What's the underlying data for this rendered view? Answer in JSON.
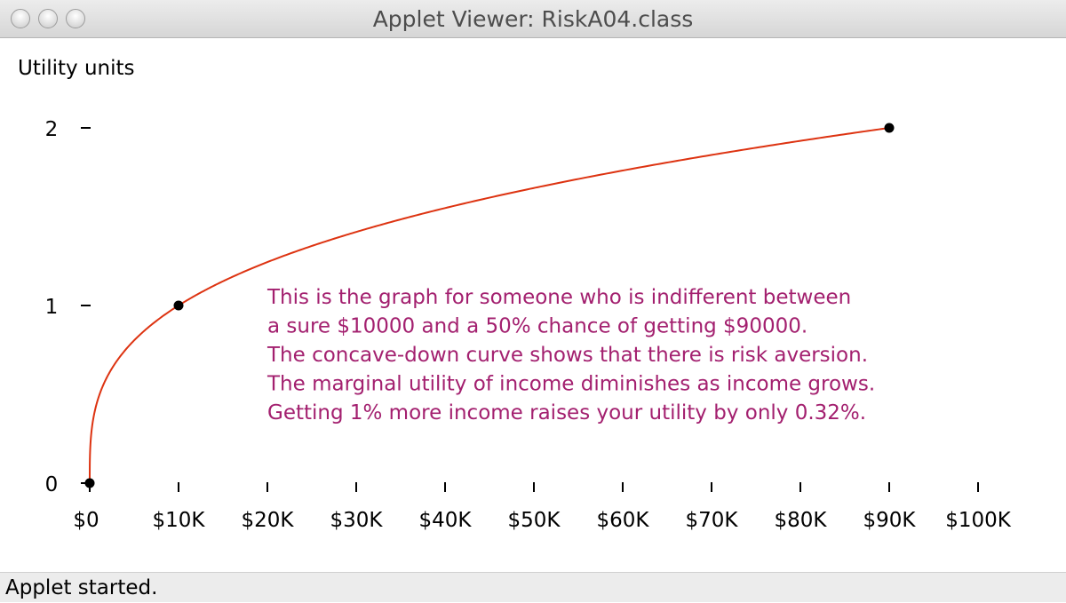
{
  "window": {
    "title": "Applet Viewer: RiskA04.class",
    "status": "Applet started."
  },
  "chart_data": {
    "type": "line",
    "ylabel": "Utility units",
    "y_ticks": [
      "0",
      "1",
      "2"
    ],
    "y_tick_values": [
      0,
      1,
      2
    ],
    "x_ticks": [
      "$0",
      "$10K",
      "$20K",
      "$30K",
      "$40K",
      "$50K",
      "$60K",
      "$70K",
      "$80K",
      "$90K",
      "$100K"
    ],
    "x_tick_values": [
      0,
      10000,
      20000,
      30000,
      40000,
      50000,
      60000,
      70000,
      80000,
      90000,
      100000
    ],
    "xlim": [
      0,
      100000
    ],
    "ylim": [
      0,
      2
    ],
    "curve_color": "#dd3311",
    "text_color": "#a3206f",
    "curve": {
      "formula": "utility = (income / 10000) ^ 0.315",
      "x_start": 0,
      "x_end": 90000
    },
    "points": [
      {
        "x": 0,
        "y": 0
      },
      {
        "x": 10000,
        "y": 1
      },
      {
        "x": 90000,
        "y": 2
      }
    ],
    "annotation": [
      "This is the graph for someone who is indifferent between",
      "a sure $10000 and a 50% chance of getting $90000.",
      "The concave-down curve shows that there is risk aversion.",
      "The marginal utility of income diminishes as income grows.",
      "Getting 1% more income raises your utility by only 0.32%."
    ]
  }
}
